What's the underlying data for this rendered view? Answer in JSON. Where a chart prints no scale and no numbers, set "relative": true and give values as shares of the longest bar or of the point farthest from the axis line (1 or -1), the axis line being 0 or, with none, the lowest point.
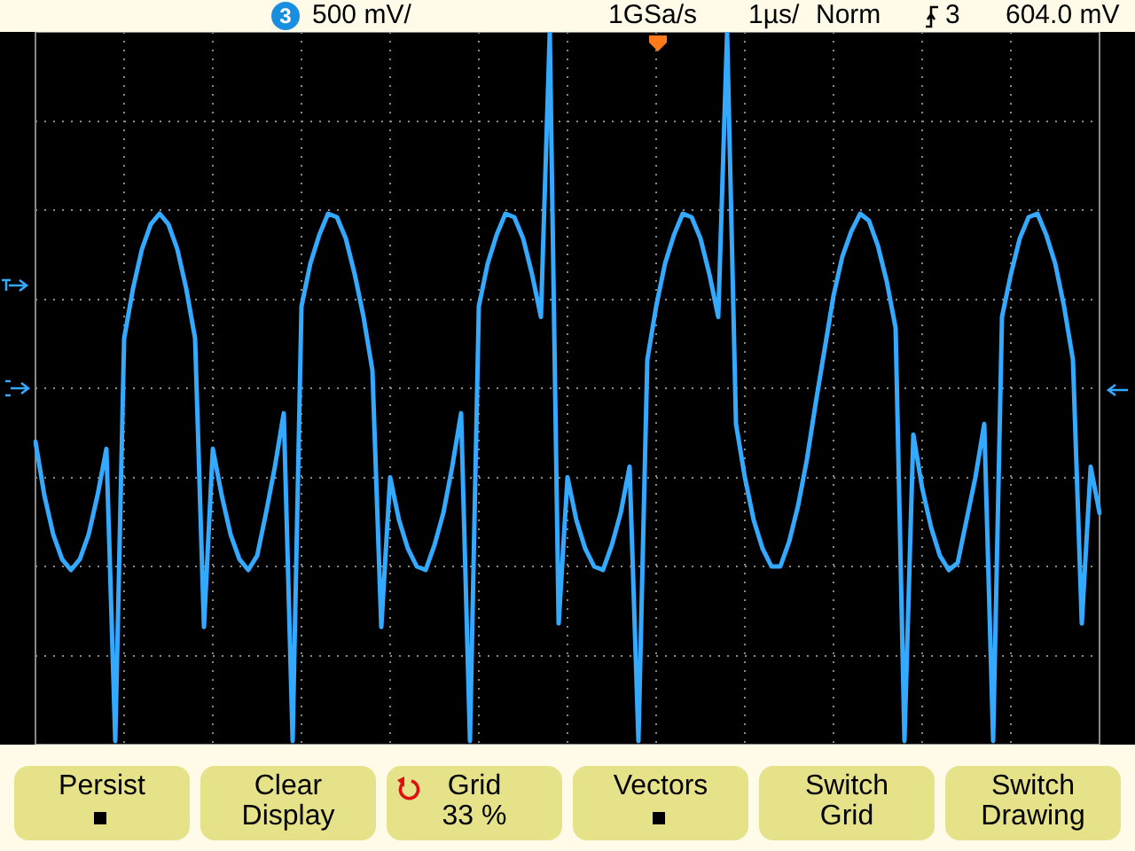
{
  "chart_data": {
    "type": "line",
    "relative": true,
    "grid": true,
    "legend": false,
    "marker": "none",
    "line_style": "solid",
    "categories": [
      null,
      null,
      null,
      null,
      null,
      null,
      null,
      null,
      null,
      null,
      null,
      null,
      null,
      null,
      null,
      null,
      null,
      null,
      null,
      null,
      null,
      null,
      null,
      null,
      null,
      null,
      null,
      null,
      null,
      null,
      null,
      null,
      null,
      null,
      null,
      null,
      null,
      null,
      null,
      null,
      null,
      null,
      null,
      null,
      null,
      null,
      null,
      null,
      null,
      null,
      null,
      null,
      null,
      null,
      null,
      null,
      null,
      null,
      null,
      null,
      null,
      null,
      null,
      null,
      null,
      null,
      null,
      null,
      null,
      null,
      null,
      null,
      null,
      null,
      null,
      null,
      null,
      null,
      null,
      null,
      null,
      null,
      null,
      null,
      null,
      null,
      null,
      null,
      null,
      null,
      null,
      null,
      null,
      null,
      null,
      null,
      null,
      null,
      null,
      null,
      null,
      null,
      null,
      null,
      null,
      null,
      null,
      null,
      null,
      null,
      null,
      null,
      null,
      null,
      null,
      null,
      null,
      null,
      null,
      null,
      null
    ],
    "series": [
      {
        "color": "#33aaff",
        "values": [
          -0.15,
          -0.3,
          -0.41,
          -0.48,
          -0.51,
          -0.48,
          -0.41,
          -0.3,
          -0.17,
          -0.99,
          0.14,
          0.28,
          0.39,
          0.46,
          0.49,
          0.46,
          0.39,
          0.28,
          0.14,
          -0.67,
          -0.17,
          -0.3,
          -0.41,
          -0.48,
          -0.51,
          -0.47,
          -0.35,
          -0.22,
          -0.07,
          -0.99,
          0.23,
          0.35,
          0.43,
          0.49,
          0.48,
          0.42,
          0.32,
          0.2,
          0.05,
          -0.67,
          -0.25,
          -0.37,
          -0.45,
          -0.5,
          -0.51,
          -0.44,
          -0.35,
          -0.22,
          -0.07,
          -0.99,
          0.23,
          0.35,
          0.43,
          0.49,
          0.48,
          0.42,
          0.32,
          0.2,
          1.0,
          -0.66,
          -0.25,
          -0.37,
          -0.45,
          -0.5,
          -0.51,
          -0.44,
          -0.35,
          -0.22,
          -0.99,
          0.08,
          0.23,
          0.35,
          0.43,
          0.49,
          0.48,
          0.42,
          0.32,
          0.2,
          1.0,
          -0.1,
          -0.25,
          -0.37,
          -0.45,
          -0.5,
          -0.5,
          -0.43,
          -0.33,
          -0.2,
          -0.04,
          0.11,
          0.26,
          0.37,
          0.44,
          0.49,
          0.47,
          0.4,
          0.3,
          0.17,
          -0.99,
          -0.13,
          -0.28,
          -0.39,
          -0.47,
          -0.51,
          -0.49,
          -0.37,
          -0.25,
          -0.1,
          -0.99,
          0.2,
          0.32,
          0.42,
          0.48,
          0.49,
          0.43,
          0.35,
          0.23,
          0.08,
          -0.66,
          -0.22,
          -0.35
        ]
      }
    ],
    "annotations": [
      "3",
      "500 mV/",
      "1GSa/s",
      "1µs/",
      "Norm",
      "3",
      "604.0 mV",
      "Persist",
      "Clear\nDisplay",
      "Grid\n33 %",
      "Vectors",
      "Switch\nGrid",
      "Switch\nDrawing"
    ]
  }
}
